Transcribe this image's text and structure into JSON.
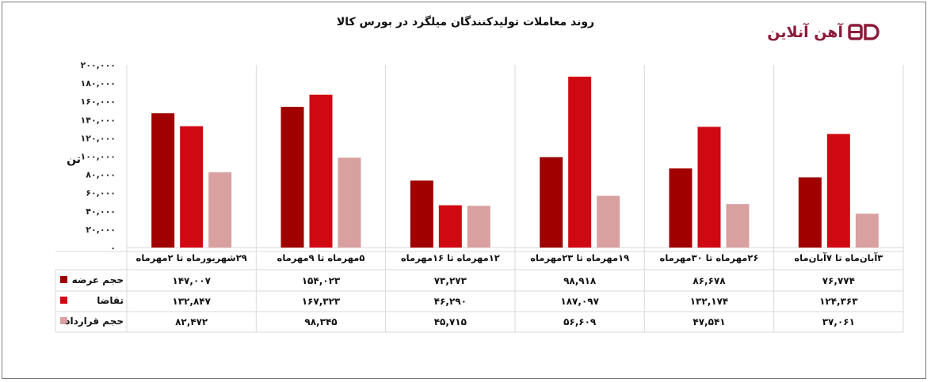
{
  "chart_data": {
    "type": "bar",
    "title": "روند معاملات تولیدکنندگان میلگرد در بورس کالا",
    "ylabel": "تن",
    "ylim": [
      0,
      200000
    ],
    "yticks": [
      "۰",
      "۲۰,۰۰۰",
      "۴۰,۰۰۰",
      "۶۰,۰۰۰",
      "۸۰,۰۰۰",
      "۱۰۰,۰۰۰",
      "۱۲۰,۰۰۰",
      "۱۴۰,۰۰۰",
      "۱۶۰,۰۰۰",
      "۱۸۰,۰۰۰",
      "۲۰۰,۰۰۰"
    ],
    "grid": true,
    "legend": "data-table-left",
    "categories": [
      "۲۹شهریورماه تا ۲مهرماه",
      "۵مهرماه تا ۹مهرماه",
      "۱۲مهرماه تا ۱۶مهرماه",
      "۱۹مهرماه تا ۲۳مهرماه",
      "۲۶مهرماه تا ۳۰مهرماه",
      "۳آبان‌ماه تا ۷آبان‌ماه"
    ],
    "series": [
      {
        "name": "حجم عرضه",
        "color": "#a00000",
        "values": [
          147007,
          154023,
          73273,
          98918,
          86678,
          76774
        ],
        "labels": [
          "۱۴۷,۰۰۷",
          "۱۵۴,۰۲۳",
          "۷۳,۲۷۳",
          "۹۸,۹۱۸",
          "۸۶,۶۷۸",
          "۷۶,۷۷۴"
        ]
      },
      {
        "name": "تقاضا",
        "color": "#d00812",
        "values": [
          132847,
          167323,
          46290,
          187097,
          132174,
          124363
        ],
        "labels": [
          "۱۳۲,۸۴۷",
          "۱۶۷,۳۲۳",
          "۴۶,۲۹۰",
          "۱۸۷,۰۹۷",
          "۱۳۲,۱۷۴",
          "۱۲۴,۳۶۳"
        ]
      },
      {
        "name": "حجم قرارداد",
        "color": "#d9a0a0",
        "values": [
          82472,
          98345,
          45715,
          56609,
          47541,
          37061
        ],
        "labels": [
          "۸۲,۴۷۲",
          "۹۸,۳۴۵",
          "۴۵,۷۱۵",
          "۵۶,۶۰۹",
          "۴۷,۵۴۱",
          "۳۷,۰۶۱"
        ]
      }
    ]
  },
  "brand": {
    "name": "آهن آنلاین",
    "color": "#8b1d3b"
  }
}
